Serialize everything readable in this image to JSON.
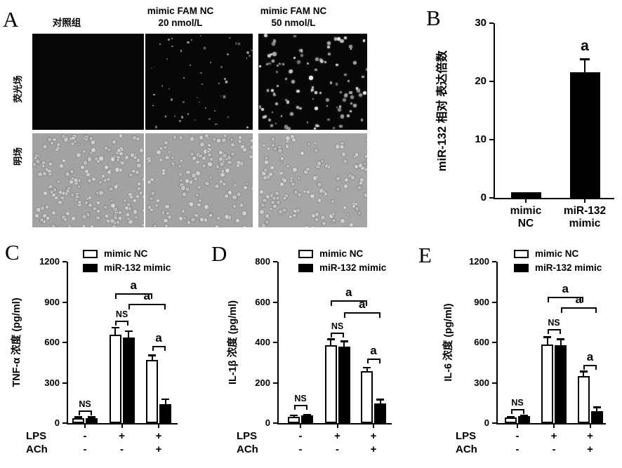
{
  "panels": {
    "a": {
      "letter": "A",
      "col_headers": [
        "对照组",
        "mimic FAM NC\n20 nmol/L",
        "mimic FAM NC\n50 nmol/L"
      ],
      "row_labels": [
        "荧光场",
        "明场"
      ],
      "micrographs": [
        {
          "row": "荧光场",
          "col": "对照组",
          "field": "fluorescence",
          "dot_count": 0
        },
        {
          "row": "荧光场",
          "col": "mimic FAM NC 20 nmol/L",
          "field": "fluorescence",
          "dot_count": 55
        },
        {
          "row": "荧光场",
          "col": "mimic FAM NC 50 nmol/L",
          "field": "fluorescence",
          "dot_count": 110
        },
        {
          "row": "明场",
          "col": "对照组",
          "field": "brightfield",
          "dot_count": 200
        },
        {
          "row": "明场",
          "col": "mimic FAM NC 20 nmol/L",
          "field": "brightfield",
          "dot_count": 145
        },
        {
          "row": "明场",
          "col": "mimic FAM NC 50 nmol/L",
          "field": "brightfield",
          "dot_count": 130
        }
      ]
    },
    "b": {
      "letter": "B"
    },
    "c": {
      "letter": "C"
    },
    "d": {
      "letter": "D"
    },
    "e": {
      "letter": "E"
    }
  },
  "colors": {
    "ink": "#000000",
    "white_bar": "#ffffff",
    "black_bar": "#000000",
    "fluorescence_bg": "#070707",
    "brightfield_bg": "#a2a2a2"
  },
  "chart_data": [
    {
      "panel": "B",
      "type": "bar",
      "title": "",
      "ylabel": "miR-132 相对 表达倍数",
      "ylim": [
        0,
        30
      ],
      "yticks": [
        0,
        10,
        20,
        30
      ],
      "grid": false,
      "categories": [
        "mimic\nNC",
        "miR-132\nmimic"
      ],
      "values": [
        1,
        21.6
      ],
      "errors": [
        0,
        2.2
      ],
      "annotations": [
        {
          "bar": 1,
          "label": "a"
        }
      ]
    },
    {
      "panel": "C",
      "type": "grouped-bar",
      "title": "",
      "ylabel": "TNF-α 浓度 (pg/ml)",
      "ylim": [
        0,
        1200
      ],
      "yticks": [
        0,
        300,
        600,
        900,
        1200
      ],
      "grid": false,
      "legend": [
        "mimic NC",
        "miR-132 mimic"
      ],
      "legend_position": "top",
      "xrows": [
        {
          "label": "LPS",
          "values": [
            "-",
            "+",
            "+"
          ]
        },
        {
          "label": "ACh",
          "values": [
            "-",
            "-",
            "+"
          ]
        }
      ],
      "series": [
        {
          "name": "mimic NC",
          "fill": "#ffffff",
          "values": [
            35,
            655,
            470
          ],
          "errors": [
            10,
            55,
            35
          ]
        },
        {
          "name": "miR-132 mimic",
          "fill": "#000000",
          "values": [
            35,
            635,
            140
          ],
          "errors": [
            10,
            50,
            40
          ]
        }
      ],
      "significance": [
        {
          "kind": "pair",
          "group": 0,
          "label": "NS",
          "y": 95
        },
        {
          "kind": "pair",
          "group": 1,
          "label": "NS",
          "y": 760
        },
        {
          "kind": "pair",
          "group": 2,
          "label": "a",
          "y": 575
        },
        {
          "kind": "span",
          "from_group": 1,
          "to_group": 2,
          "series": 0,
          "label": "a",
          "y": 965
        },
        {
          "kind": "span",
          "from_group": 1,
          "to_group": 2,
          "series": 1,
          "label": "a",
          "y": 885
        }
      ]
    },
    {
      "panel": "D",
      "type": "grouped-bar",
      "title": "",
      "ylabel": "IL-1β 浓度 (pg/ml)",
      "ylim": [
        0,
        800
      ],
      "yticks": [
        0,
        200,
        400,
        600,
        800
      ],
      "grid": false,
      "legend": [
        "mimic NC",
        "miR-132 mimic"
      ],
      "legend_position": "top",
      "xrows": [
        {
          "label": "LPS",
          "values": [
            "-",
            "+",
            "+"
          ]
        },
        {
          "label": "ACh",
          "values": [
            "-",
            "-",
            "+"
          ]
        }
      ],
      "series": [
        {
          "name": "mimic NC",
          "fill": "#ffffff",
          "values": [
            33,
            385,
            258
          ],
          "errors": [
            6,
            32,
            17
          ]
        },
        {
          "name": "miR-132 mimic",
          "fill": "#000000",
          "values": [
            38,
            378,
            98
          ],
          "errors": [
            5,
            28,
            20
          ]
        }
      ],
      "significance": [
        {
          "kind": "pair",
          "group": 0,
          "label": "NS",
          "y": 90
        },
        {
          "kind": "pair",
          "group": 1,
          "label": "NS",
          "y": 450
        },
        {
          "kind": "pair",
          "group": 2,
          "label": "a",
          "y": 320
        },
        {
          "kind": "span",
          "from_group": 1,
          "to_group": 2,
          "series": 0,
          "label": "a",
          "y": 610
        },
        {
          "kind": "span",
          "from_group": 1,
          "to_group": 2,
          "series": 1,
          "label": "a",
          "y": 550
        }
      ]
    },
    {
      "panel": "E",
      "type": "grouped-bar",
      "title": "",
      "ylabel": "IL-6 浓度 (pg/ml)",
      "ylim": [
        0,
        1200
      ],
      "yticks": [
        0,
        300,
        600,
        900,
        1200
      ],
      "grid": false,
      "legend": [
        "mimic NC",
        "miR-132 mimic"
      ],
      "legend_position": "top",
      "xrows": [
        {
          "label": "LPS",
          "values": [
            "-",
            "+",
            "+"
          ]
        },
        {
          "label": "ACh",
          "values": [
            "-",
            "-",
            "+"
          ]
        }
      ],
      "series": [
        {
          "name": "mimic NC",
          "fill": "#ffffff",
          "values": [
            40,
            585,
            350
          ],
          "errors": [
            8,
            55,
            35
          ]
        },
        {
          "name": "miR-132 mimic",
          "fill": "#000000",
          "values": [
            50,
            578,
            90
          ],
          "errors": [
            8,
            47,
            28
          ]
        }
      ],
      "significance": [
        {
          "kind": "pair",
          "group": 0,
          "label": "NS",
          "y": 105
        },
        {
          "kind": "pair",
          "group": 1,
          "label": "NS",
          "y": 700
        },
        {
          "kind": "pair",
          "group": 2,
          "label": "a",
          "y": 435
        },
        {
          "kind": "span",
          "from_group": 1,
          "to_group": 2,
          "series": 0,
          "label": "a",
          "y": 940
        },
        {
          "kind": "span",
          "from_group": 1,
          "to_group": 2,
          "series": 1,
          "label": "a",
          "y": 860
        }
      ]
    }
  ]
}
